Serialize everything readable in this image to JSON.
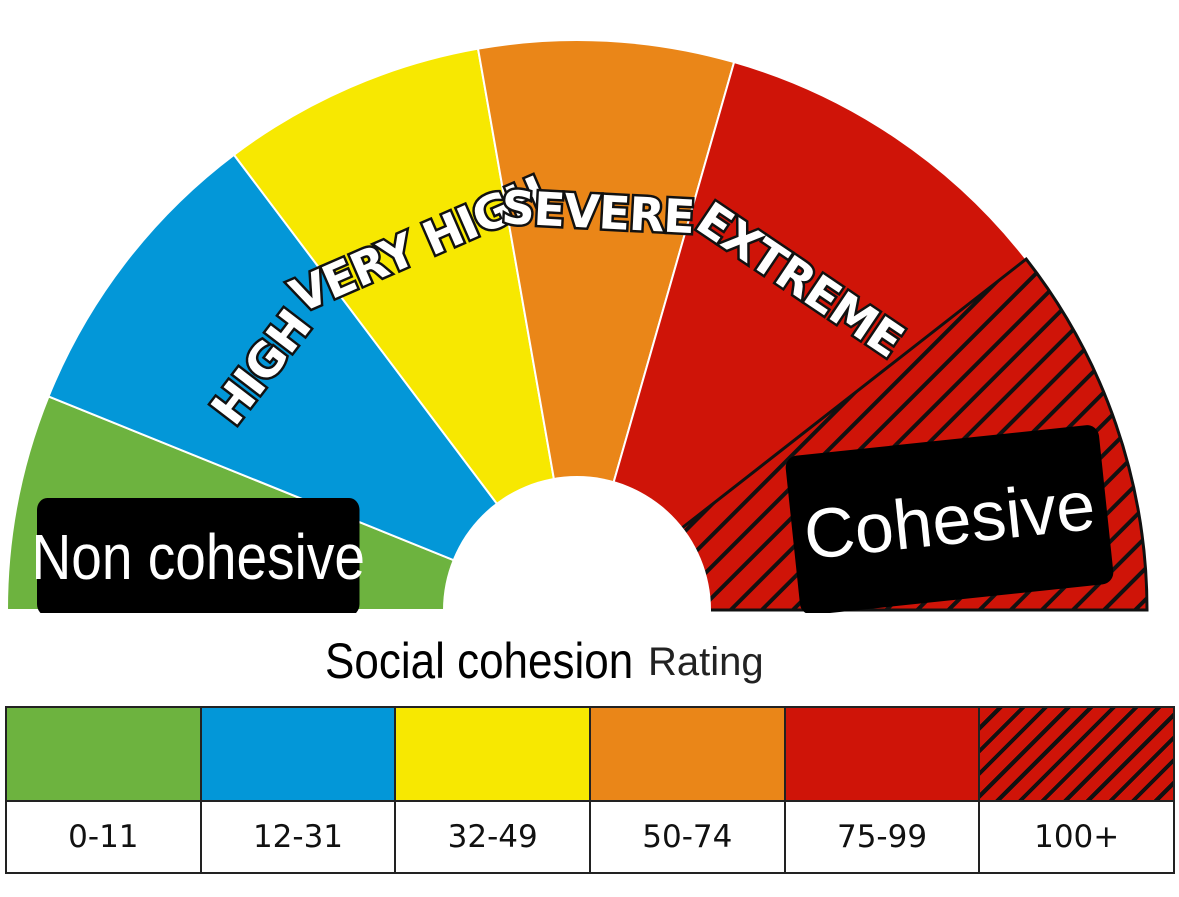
{
  "gauge": {
    "sectors": [
      {
        "label": "",
        "color": "#6db33f"
      },
      {
        "label": "HIGH",
        "color": "#0397d8"
      },
      {
        "label": "VERY HIGH",
        "color": "#f7e801"
      },
      {
        "label": "SEVERE",
        "color": "#ea8618"
      },
      {
        "label": "EXTREME",
        "color": "#cf1408"
      },
      {
        "label": "",
        "color": "#cf1408",
        "hatched": true
      }
    ]
  },
  "overlays": {
    "left_label": "Non cohesive",
    "right_label": "Cohesive"
  },
  "axis": {
    "title": "Social cohesion",
    "rating_label": "Rating"
  },
  "legend": {
    "items": [
      {
        "range": "0-11",
        "color": "#6db33f"
      },
      {
        "range": "12-31",
        "color": "#0397d8"
      },
      {
        "range": "32-49",
        "color": "#f7e801"
      },
      {
        "range": "50-74",
        "color": "#ea8618"
      },
      {
        "range": "75-99",
        "color": "#cf1408"
      },
      {
        "range": "100+",
        "color": "#cf1408",
        "hatched": true
      }
    ]
  }
}
